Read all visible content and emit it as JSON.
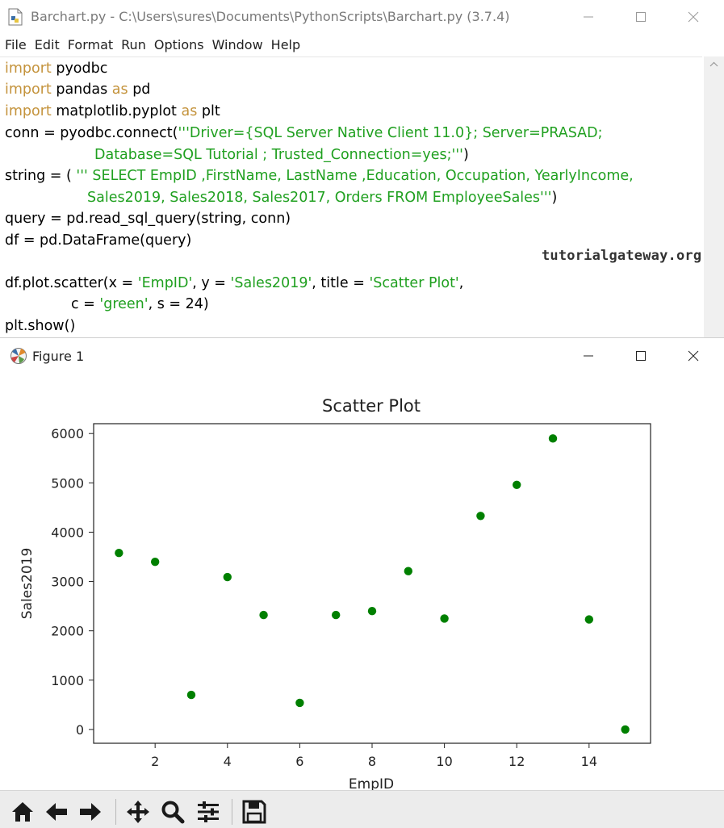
{
  "editor": {
    "title": "Barchart.py - C:\\Users\\sures\\Documents\\PythonScripts\\Barchart.py (3.7.4)",
    "menu": [
      "File",
      "Edit",
      "Format",
      "Run",
      "Options",
      "Window",
      "Help"
    ],
    "code": {
      "l1_kw": "import",
      "l1_rest": " pyodbc",
      "l2_kw": "import",
      "l2_mid": " pandas ",
      "l2_kw2": "as",
      "l2_rest": " pd",
      "l3_kw": "import",
      "l3_mid": " matplotlib.pyplot ",
      "l3_kw2": "as",
      "l3_rest": " plt",
      "l4_a": "conn = pyodbc.connect(",
      "l4_s": "'''Driver={SQL Server Native Client 11.0}; Server=PRASAD;",
      "l5_s": "Database=SQL Tutorial ; Trusted_Connection=yes;'''",
      "l5_b": ")",
      "l6_a": "string = ( ",
      "l6_s": "''' SELECT EmpID ,FirstName, LastName ,Education, Occupation, YearlyIncome,",
      "l7_s": "Sales2019, Sales2018, Sales2017, Orders FROM EmployeeSales'''",
      "l7_b": ")",
      "l8": "query = pd.read_sql_query(string, conn)",
      "l9": "df = pd.DataFrame(query)",
      "l10_a": "df.plot.scatter(x = ",
      "l10_s1": "'EmpID'",
      "l10_b": ", y = ",
      "l10_s2": "'Sales2019'",
      "l10_c": ", title = ",
      "l10_s3": "'Scatter Plot'",
      "l10_d": ",",
      "l11_a": "c = ",
      "l11_s": "'green'",
      "l11_b": ", s = 24)",
      "l12": "plt.show()"
    },
    "watermark": "tutorialgateway.org"
  },
  "figure": {
    "title": "Figure 1",
    "toolbar": [
      "home-icon",
      "back-arrow-icon",
      "forward-arrow-icon",
      "pan-icon",
      "zoom-icon",
      "configure-subplots-icon",
      "save-icon"
    ]
  },
  "chart_data": {
    "type": "scatter",
    "title": "Scatter Plot",
    "xlabel": "EmpID",
    "ylabel": "Sales2019",
    "x": [
      1,
      2,
      3,
      4,
      5,
      6,
      7,
      8,
      9,
      10,
      11,
      12,
      13,
      14,
      15
    ],
    "y": [
      3578,
      3399,
      700,
      3090,
      2320,
      540,
      2320,
      2400,
      3210,
      2250,
      4330,
      4960,
      5900,
      2230,
      0
    ],
    "xlim": [
      0.3,
      15.7
    ],
    "ylim": [
      -280,
      6200
    ],
    "xticks": [
      2,
      4,
      6,
      8,
      10,
      12,
      14
    ],
    "yticks": [
      0,
      1000,
      2000,
      3000,
      4000,
      5000,
      6000
    ],
    "color": "#008000",
    "grid": false
  }
}
